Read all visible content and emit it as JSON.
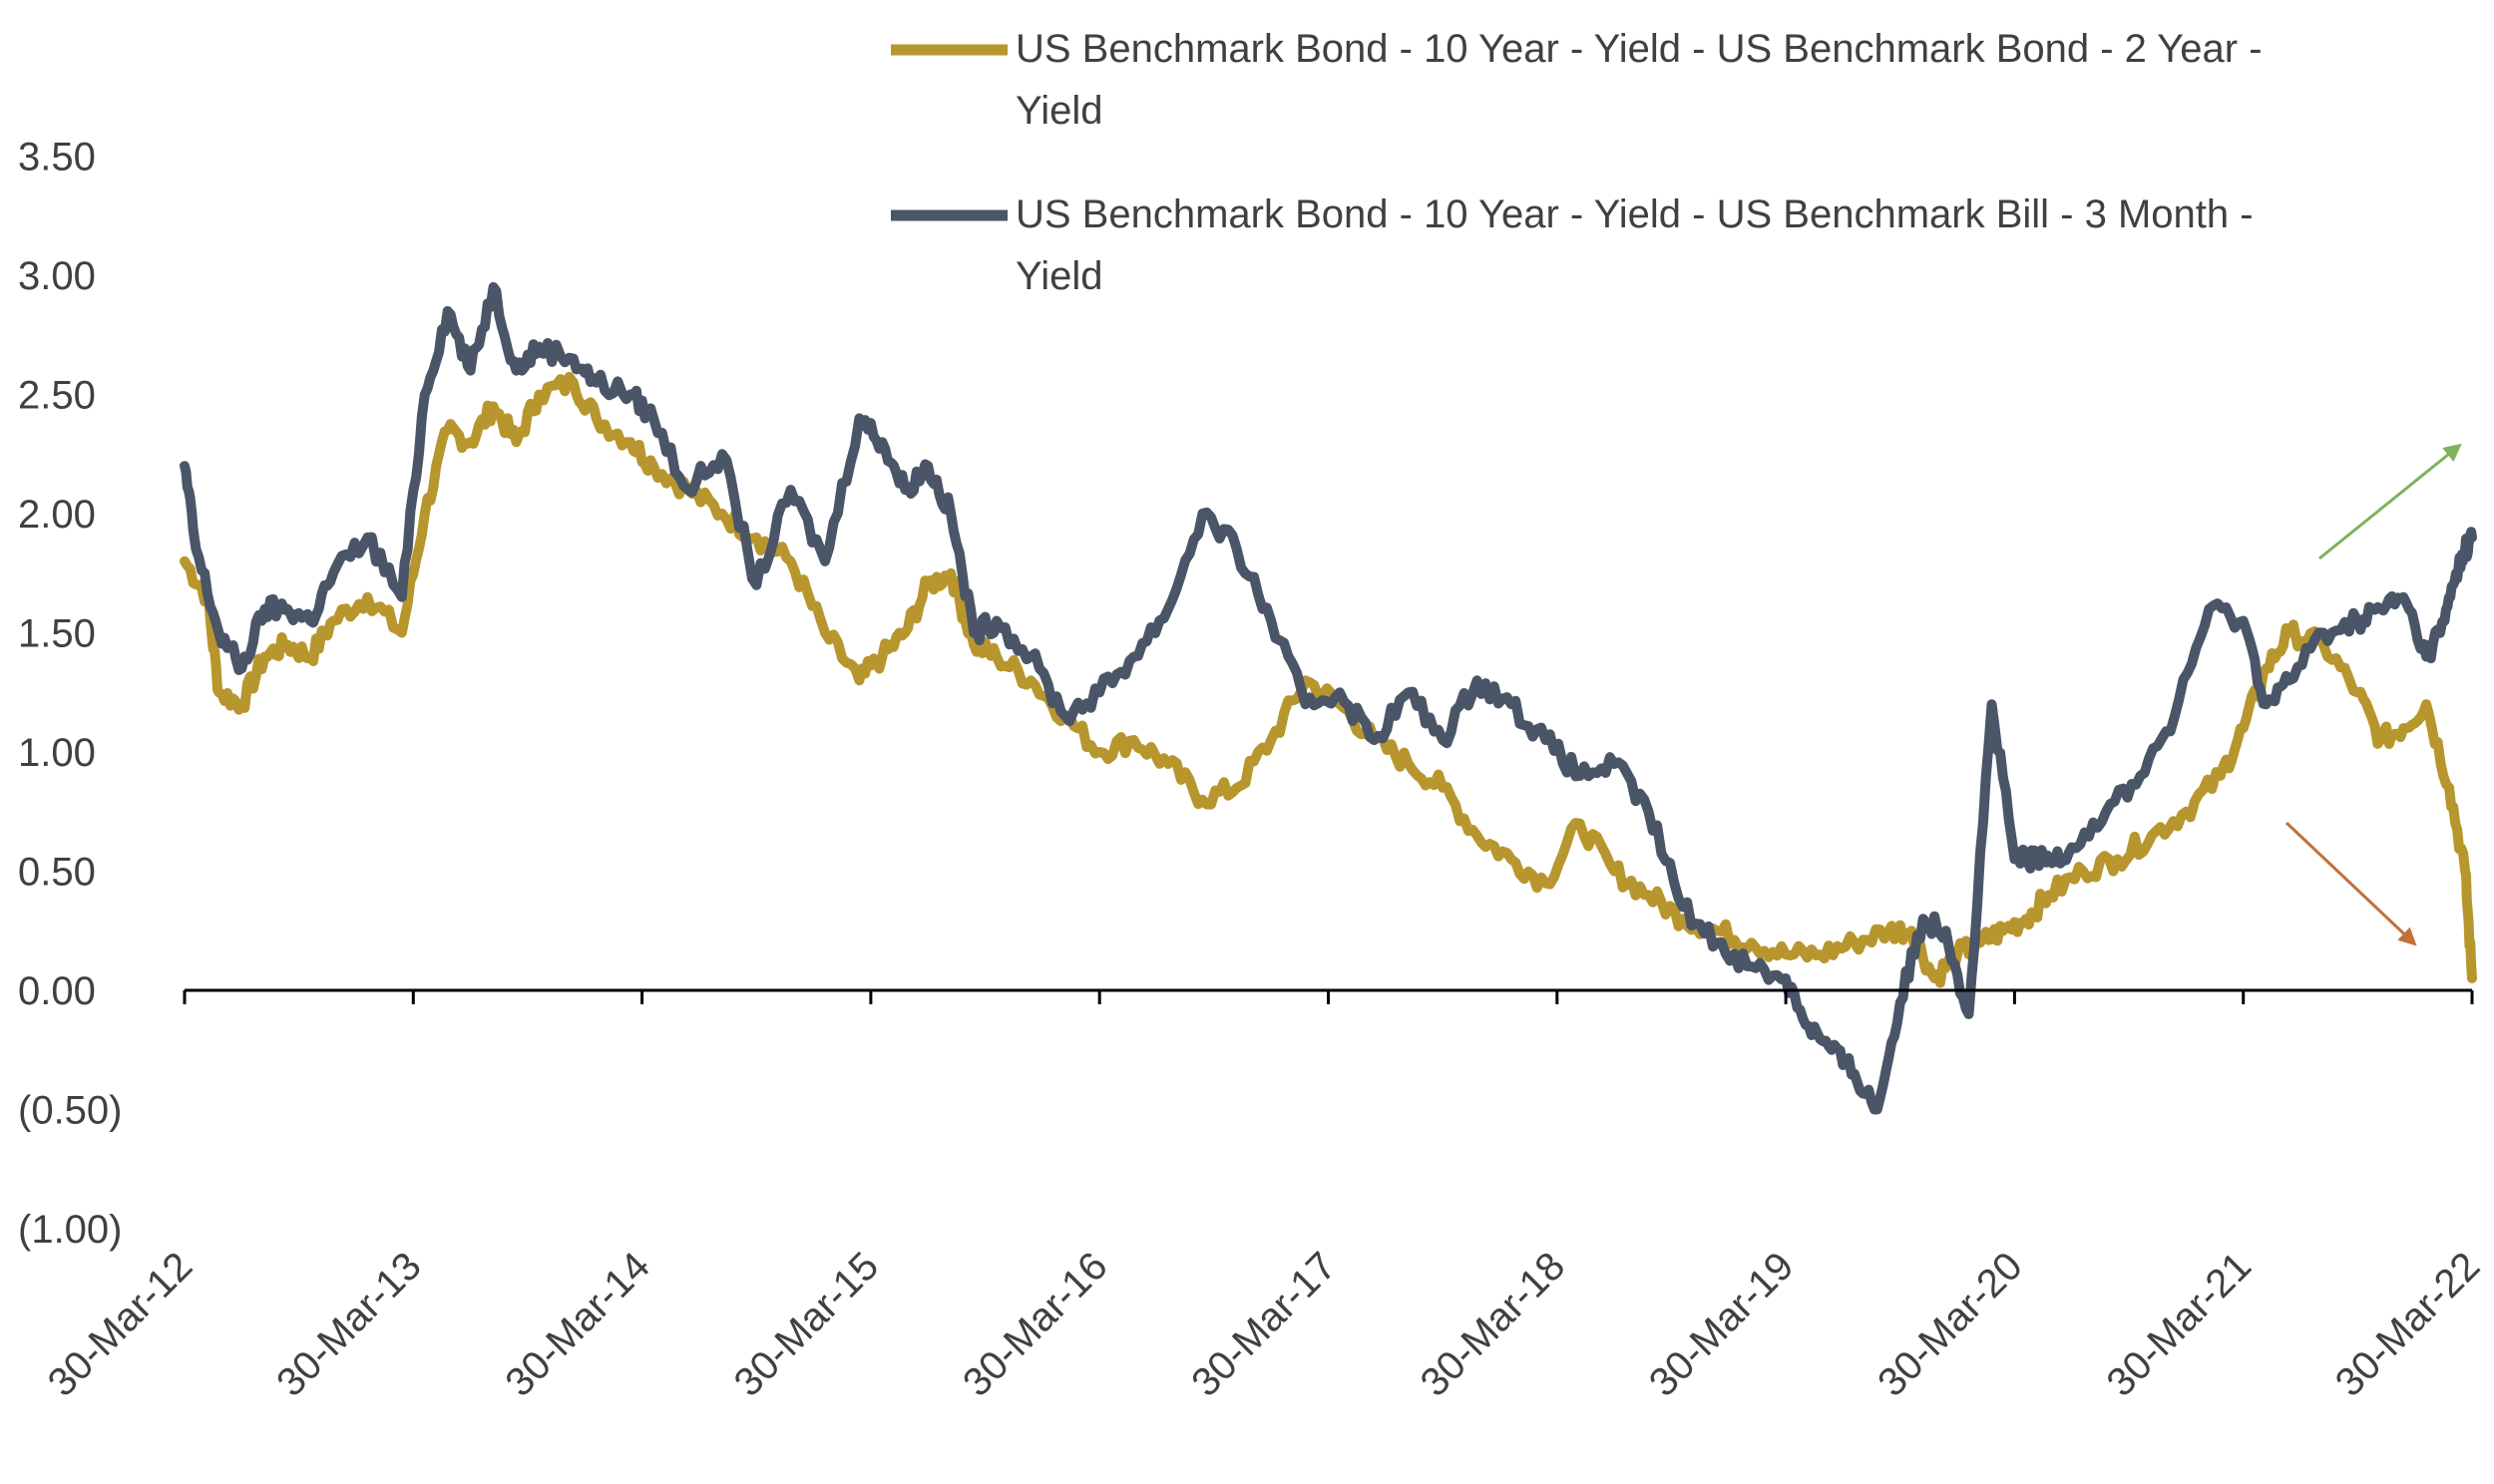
{
  "chart_data": {
    "type": "line",
    "title": "",
    "xlabel": "",
    "ylabel": "",
    "ylim": [
      -1.0,
      3.5
    ],
    "y_ticks": [
      3.5,
      3.0,
      2.5,
      2.0,
      1.5,
      1.0,
      0.5,
      0.0,
      -0.5,
      -1.0
    ],
    "y_tick_labels": [
      "3.50",
      "3.00",
      "2.50",
      "2.00",
      "1.50",
      "1.00",
      "0.50",
      "0.00",
      "(0.50)",
      "(1.00)"
    ],
    "x_tick_labels": [
      "30-Mar-12",
      "30-Mar-13",
      "30-Mar-14",
      "30-Mar-15",
      "30-Mar-16",
      "30-Mar-17",
      "30-Mar-18",
      "30-Mar-19",
      "30-Mar-20",
      "30-Mar-21",
      "30-Mar-22"
    ],
    "xlim": [
      2012.0,
      2022.0
    ],
    "legend_placement": "top-right",
    "series": [
      {
        "name": "US Benchmark Bond - 10 Year - Yield - US Benchmark Bond - 2 Year - Yield",
        "legend_lines": [
          "US Benchmark Bond - 10 Year - Yield - US Benchmark Bond - 2 Year -",
          "Yield"
        ],
        "color": "#b8962e",
        "x": [
          2012.0,
          2012.1,
          2012.15,
          2012.25,
          2012.35,
          2012.45,
          2012.55,
          2012.65,
          2012.8,
          2012.95,
          2013.05,
          2013.15,
          2013.25,
          2013.35,
          2013.45,
          2013.55,
          2013.7,
          2013.8,
          2013.95,
          2014.05,
          2014.2,
          2014.35,
          2014.5,
          2014.65,
          2014.8,
          2014.95,
          2015.05,
          2015.15,
          2015.25,
          2015.35,
          2015.45,
          2015.55,
          2015.7,
          2015.85,
          2016.0,
          2016.15,
          2016.3,
          2016.45,
          2016.6,
          2016.75,
          2016.9,
          2017.05,
          2017.2,
          2017.35,
          2017.5,
          2017.65,
          2017.8,
          2017.95,
          2018.1,
          2018.25,
          2018.4,
          2018.55,
          2018.7,
          2018.85,
          2019.0,
          2019.15,
          2019.3,
          2019.45,
          2019.55,
          2019.65,
          2019.75,
          2019.85,
          2019.95,
          2020.05,
          2020.15,
          2020.3,
          2020.45,
          2020.6,
          2020.75,
          2020.9,
          2021.0,
          2021.1,
          2021.2,
          2021.35,
          2021.5,
          2021.6,
          2021.7,
          2021.8,
          2021.9,
          2021.97,
          2022.0
        ],
        "values": [
          1.8,
          1.65,
          1.25,
          1.2,
          1.4,
          1.45,
          1.4,
          1.55,
          1.65,
          1.5,
          2.0,
          2.35,
          2.3,
          2.45,
          2.3,
          2.5,
          2.55,
          2.4,
          2.3,
          2.2,
          2.1,
          2.0,
          1.9,
          1.8,
          1.5,
          1.3,
          1.4,
          1.5,
          1.7,
          1.75,
          1.45,
          1.4,
          1.3,
          1.15,
          1.0,
          1.05,
          0.95,
          0.8,
          0.85,
          1.05,
          1.3,
          1.2,
          1.05,
          0.95,
          0.85,
          0.65,
          0.55,
          0.45,
          0.7,
          0.5,
          0.4,
          0.3,
          0.25,
          0.2,
          0.15,
          0.15,
          0.2,
          0.25,
          0.25,
          0.05,
          0.15,
          0.2,
          0.25,
          0.3,
          0.4,
          0.5,
          0.55,
          0.65,
          0.75,
          0.9,
          1.1,
          1.35,
          1.5,
          1.45,
          1.25,
          1.05,
          1.1,
          1.2,
          0.85,
          0.5,
          0.05
        ]
      },
      {
        "name": "US Benchmark Bond - 10 Year - Yield - US Benchmark Bill - 3 Month - Yield",
        "legend_lines": [
          "US Benchmark Bond - 10 Year - Yield - US Benchmark Bill - 3 Month -",
          "Yield"
        ],
        "color": "#4a5568",
        "x": [
          2012.0,
          2012.05,
          2012.15,
          2012.25,
          2012.35,
          2012.45,
          2012.55,
          2012.65,
          2012.8,
          2012.95,
          2013.05,
          2013.15,
          2013.25,
          2013.35,
          2013.45,
          2013.55,
          2013.7,
          2013.8,
          2013.95,
          2014.05,
          2014.2,
          2014.35,
          2014.5,
          2014.65,
          2014.8,
          2014.95,
          2015.05,
          2015.15,
          2015.25,
          2015.35,
          2015.45,
          2015.55,
          2015.7,
          2015.85,
          2016.0,
          2016.15,
          2016.3,
          2016.45,
          2016.6,
          2016.75,
          2016.9,
          2017.05,
          2017.2,
          2017.35,
          2017.5,
          2017.65,
          2017.8,
          2017.95,
          2018.1,
          2018.25,
          2018.4,
          2018.55,
          2018.7,
          2018.85,
          2019.0,
          2019.1,
          2019.2,
          2019.3,
          2019.4,
          2019.5,
          2019.6,
          2019.7,
          2019.8,
          2019.9,
          2020.0,
          2020.05,
          2020.1,
          2020.15,
          2020.25,
          2020.4,
          2020.55,
          2020.7,
          2020.85,
          2021.0,
          2021.1,
          2021.2,
          2021.35,
          2021.5,
          2021.6,
          2021.7,
          2021.8,
          2021.88,
          2021.93,
          2021.97,
          2022.0
        ],
        "values": [
          2.2,
          1.85,
          1.5,
          1.35,
          1.6,
          1.6,
          1.55,
          1.75,
          1.9,
          1.65,
          2.5,
          2.85,
          2.6,
          2.95,
          2.6,
          2.7,
          2.65,
          2.55,
          2.5,
          2.4,
          2.1,
          2.25,
          1.7,
          2.1,
          1.8,
          2.4,
          2.3,
          2.1,
          2.2,
          2.0,
          1.5,
          1.55,
          1.4,
          1.15,
          1.25,
          1.4,
          1.6,
          2.0,
          1.85,
          1.55,
          1.2,
          1.25,
          1.05,
          1.25,
          1.05,
          1.3,
          1.2,
          1.05,
          0.9,
          0.95,
          0.75,
          0.35,
          0.2,
          0.1,
          0.05,
          -0.15,
          -0.25,
          -0.35,
          -0.5,
          -0.05,
          0.3,
          0.25,
          -0.1,
          1.2,
          0.55,
          0.55,
          0.55,
          0.55,
          0.6,
          0.75,
          0.9,
          1.15,
          1.6,
          1.55,
          1.2,
          1.3,
          1.5,
          1.55,
          1.6,
          1.65,
          1.4,
          1.55,
          1.75,
          1.85,
          1.9
        ]
      }
    ],
    "annotations": [
      {
        "name": "up-arrow",
        "color": "#7fb25a",
        "direction": "up-right"
      },
      {
        "name": "down-arrow",
        "color": "#c0703a",
        "direction": "down-right"
      }
    ]
  }
}
